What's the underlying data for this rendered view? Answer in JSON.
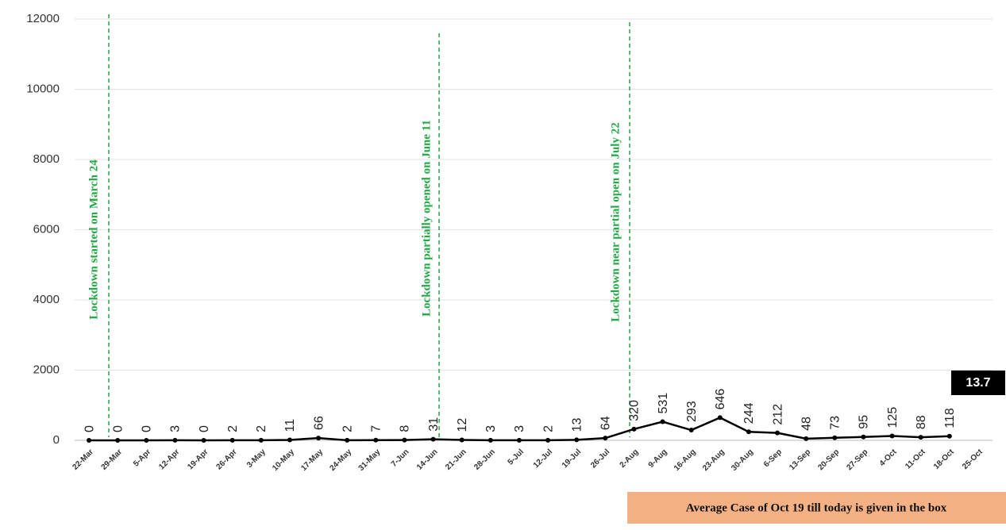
{
  "chart_data": {
    "type": "line",
    "categories": [
      "22-Mar",
      "29-Mar",
      "5-Apr",
      "12-Apr",
      "19-Apr",
      "26-Apr",
      "3-May",
      "10-May",
      "17-May",
      "24-May",
      "31-May",
      "7-Jun",
      "14-Jun",
      "21-Jun",
      "28-Jun",
      "5-Jul",
      "12-Jul",
      "19-Jul",
      "26-Jul",
      "2-Aug",
      "9-Aug",
      "16-Aug",
      "23-Aug",
      "30-Aug",
      "6-Sep",
      "13-Sep",
      "20-Sep",
      "27-Sep",
      "4-Oct",
      "11-Oct",
      "18-Oct",
      "25-Oct"
    ],
    "values": [
      0,
      0,
      0,
      3,
      0,
      2,
      2,
      11,
      66,
      2,
      7,
      8,
      31,
      12,
      3,
      3,
      2,
      13,
      64,
      320,
      531,
      293,
      646,
      244,
      212,
      48,
      73,
      95,
      125,
      88,
      118,
      null
    ],
    "color": "#000000",
    "ylim": [
      0,
      12000
    ],
    "yticks": [
      0,
      2000,
      4000,
      6000,
      8000,
      10000,
      12000
    ],
    "grid": true,
    "annotations": [
      "Lockdown started on March 24",
      "Lockdown partially opened on June 11",
      "Lockdown near partial open on July 22"
    ],
    "annotation_color": "#22a845",
    "box_value": 13.7,
    "box_note": "Average Case of Oct 19 till today is given in the box"
  }
}
